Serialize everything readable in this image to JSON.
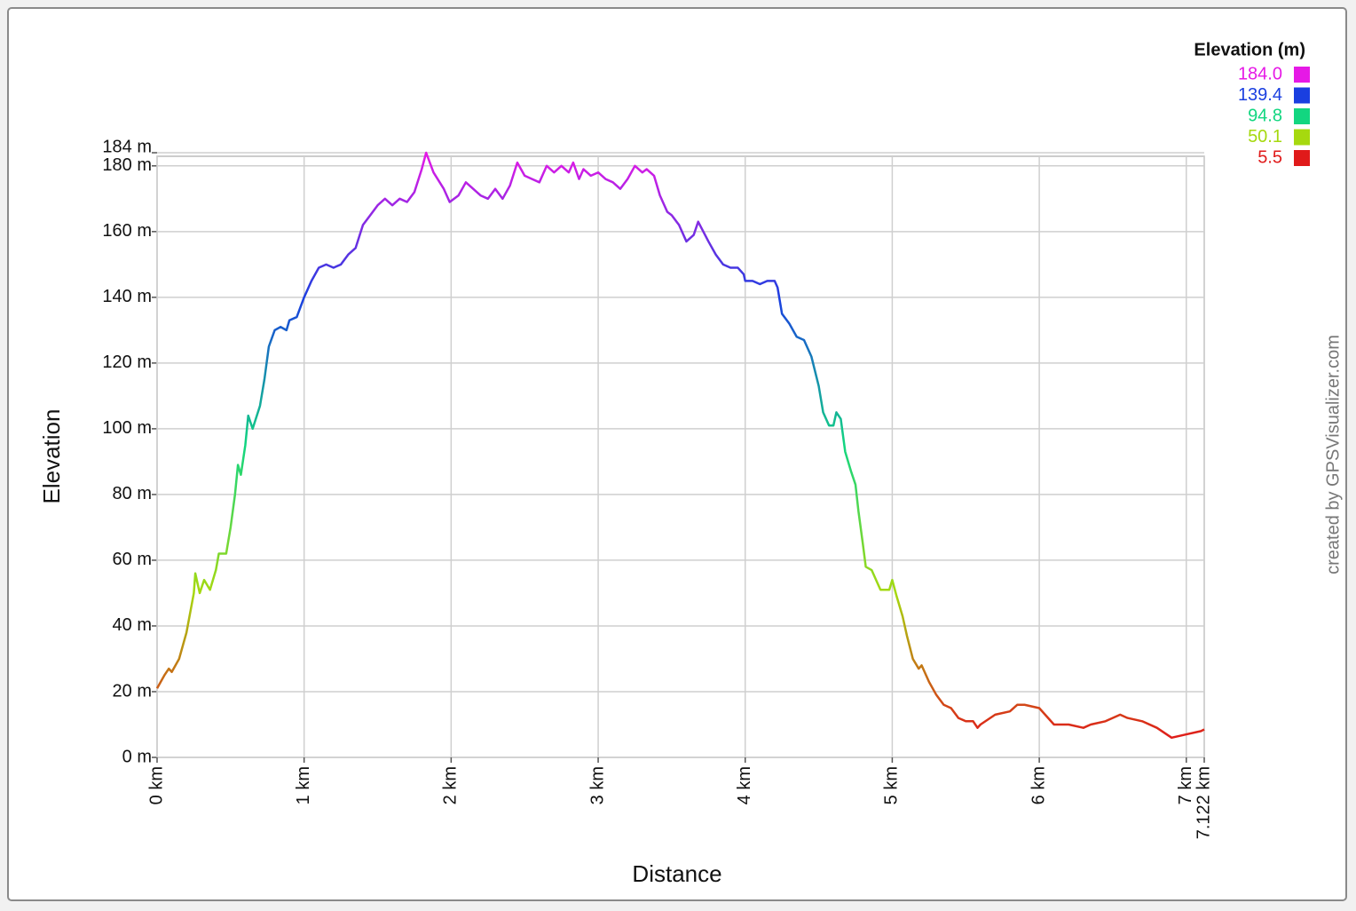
{
  "chart_data": {
    "type": "line",
    "xlabel": "Distance",
    "ylabel": "Elevation",
    "credit": "created by GPSVisualizer.com",
    "legend_title": "Elevation (m)",
    "color_scale": [
      {
        "value": {
          "value": 184.0,
          "label": "184.0"
        },
        "color": "#e619e6"
      },
      {
        "value": 139.4,
        "color": "#1a3fe0"
      },
      {
        "value": 94.8,
        "color": "#12d680"
      },
      {
        "value": 50.1,
        "color": "#a6d90f"
      },
      {
        "value": 5.5,
        "color": "#e01a1a"
      }
    ],
    "xlim": [
      0,
      7.122
    ],
    "ylim": [
      0,
      184
    ],
    "grid": true,
    "xticks": [
      {
        "value": 0,
        "label": "0 km"
      },
      {
        "value": 1,
        "label": "1 km"
      },
      {
        "value": 2,
        "label": "2 km"
      },
      {
        "value": 3,
        "label": "3 km"
      },
      {
        "value": 4,
        "label": "4 km"
      },
      {
        "value": 5,
        "label": "5 km"
      },
      {
        "value": 6,
        "label": "6 km"
      },
      {
        "value": 7,
        "label": "7 km"
      },
      {
        "value": 7.122,
        "label": "7.122 km"
      }
    ],
    "yticks": [
      {
        "value": 0,
        "label": "0 m"
      },
      {
        "value": 20,
        "label": "20 m"
      },
      {
        "value": 40,
        "label": "40 m"
      },
      {
        "value": 60,
        "label": "60 m"
      },
      {
        "value": 80,
        "label": "80 m"
      },
      {
        "value": 100,
        "label": "100 m"
      },
      {
        "value": 120,
        "label": "120 m"
      },
      {
        "value": 140,
        "label": "140 m"
      },
      {
        "value": 160,
        "label": "160 m"
      },
      {
        "value": 180,
        "label": "180 m"
      },
      {
        "value": 184,
        "label": "184 m"
      }
    ],
    "x": [
      0,
      0.05,
      0.08,
      0.1,
      0.15,
      0.2,
      0.25,
      0.26,
      0.29,
      0.32,
      0.36,
      0.4,
      0.42,
      0.47,
      0.5,
      0.53,
      0.55,
      0.57,
      0.6,
      0.62,
      0.65,
      0.7,
      0.73,
      0.76,
      0.8,
      0.84,
      0.88,
      0.9,
      0.95,
      1.0,
      1.05,
      1.1,
      1.15,
      1.2,
      1.25,
      1.3,
      1.35,
      1.4,
      1.45,
      1.5,
      1.55,
      1.6,
      1.65,
      1.7,
      1.75,
      1.8,
      1.83,
      1.88,
      1.95,
      1.99,
      2.05,
      2.1,
      2.15,
      2.2,
      2.25,
      2.3,
      2.35,
      2.4,
      2.45,
      2.5,
      2.55,
      2.6,
      2.65,
      2.7,
      2.75,
      2.8,
      2.83,
      2.87,
      2.9,
      2.95,
      3.0,
      3.05,
      3.1,
      3.15,
      3.2,
      3.25,
      3.3,
      3.33,
      3.38,
      3.42,
      3.47,
      3.5,
      3.55,
      3.6,
      3.65,
      3.68,
      3.75,
      3.8,
      3.85,
      3.9,
      3.95,
      3.99,
      4.0,
      4.05,
      4.1,
      4.15,
      4.2,
      4.22,
      4.25,
      4.3,
      4.35,
      4.4,
      4.45,
      4.5,
      4.53,
      4.57,
      4.6,
      4.62,
      4.65,
      4.68,
      4.72,
      4.75,
      4.77,
      4.8,
      4.82,
      4.86,
      4.9,
      4.92,
      4.98,
      5.0,
      5.03,
      5.07,
      5.1,
      5.14,
      5.18,
      5.2,
      5.25,
      5.3,
      5.35,
      5.4,
      5.45,
      5.5,
      5.55,
      5.58,
      5.6,
      5.7,
      5.8,
      5.85,
      5.9,
      6.0,
      6.1,
      6.2,
      6.3,
      6.35,
      6.45,
      6.55,
      6.6,
      6.7,
      6.8,
      6.9,
      7.0,
      7.1,
      7.122
    ],
    "series": [
      {
        "name": "Elevation",
        "values": [
          21,
          25,
          27,
          26,
          30,
          38,
          50,
          56,
          50,
          54,
          51,
          57,
          62,
          62,
          70,
          80,
          89,
          86,
          95,
          104,
          100,
          107,
          115,
          125,
          130,
          131,
          130,
          133,
          134,
          140,
          145,
          149,
          150,
          149,
          150,
          153,
          155,
          162,
          165,
          168,
          170,
          168,
          170,
          169,
          172,
          179,
          184,
          178,
          173,
          169,
          171,
          175,
          173,
          171,
          170,
          173,
          170,
          174,
          181,
          177,
          176,
          175,
          180,
          178,
          180,
          178,
          181,
          176,
          179,
          177,
          178,
          176,
          175,
          173,
          176,
          180,
          178,
          179,
          177,
          171,
          166,
          165,
          162,
          157,
          159,
          163,
          157,
          153,
          150,
          149,
          149,
          147,
          145,
          145,
          144,
          145,
          145,
          143,
          135,
          132,
          128,
          127,
          122,
          113,
          105,
          101,
          101,
          105,
          103,
          93,
          87,
          83,
          75,
          65,
          58,
          57,
          53,
          51,
          51,
          54,
          49,
          43,
          37,
          30,
          27,
          28,
          23,
          19,
          16,
          15,
          12,
          11,
          11,
          9,
          10,
          13,
          14,
          16,
          16,
          15,
          10,
          10,
          9,
          10,
          11,
          13,
          12,
          11,
          9,
          6,
          7,
          8,
          8.5
        ]
      }
    ]
  }
}
